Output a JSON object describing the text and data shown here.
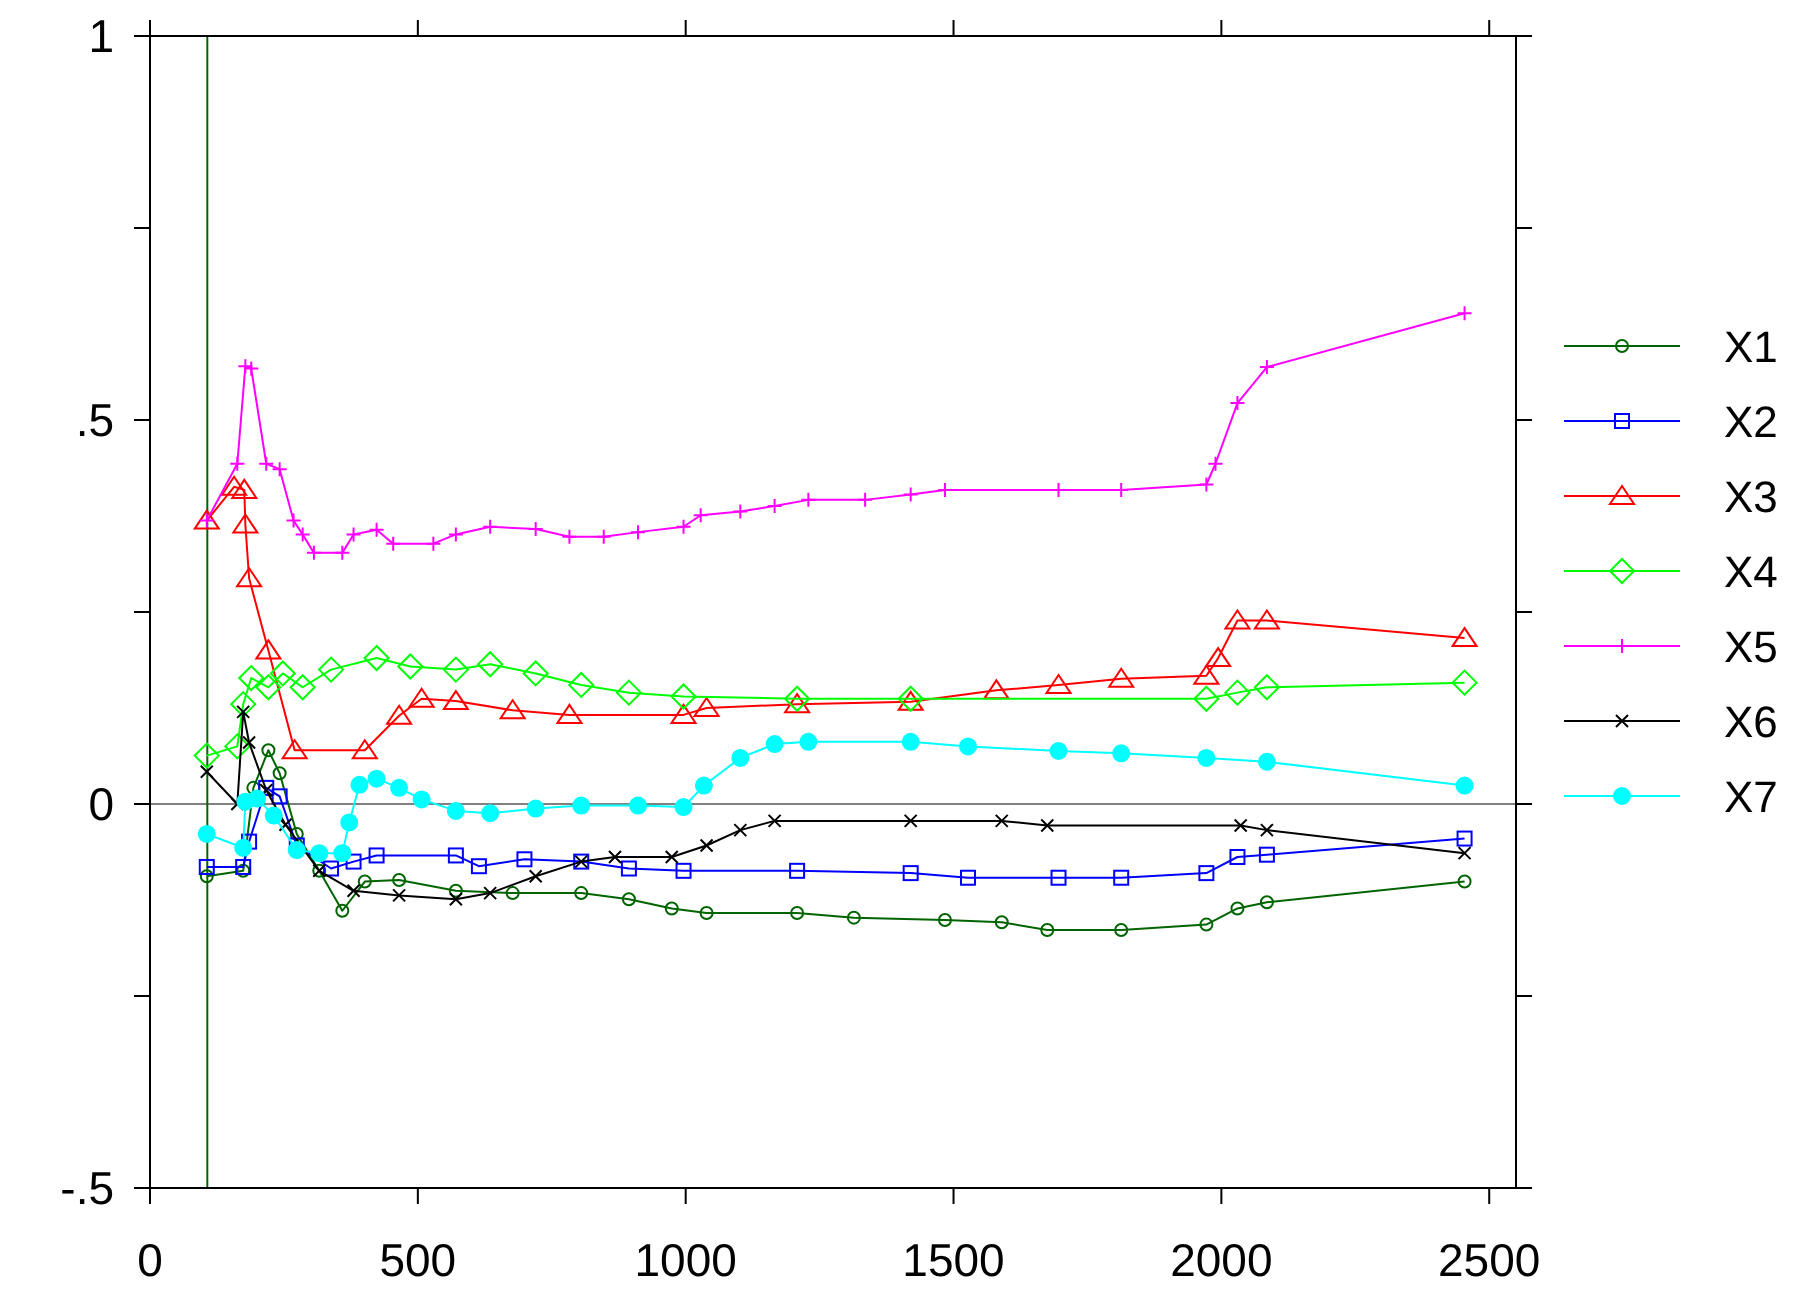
{
  "chart_data": {
    "type": "line",
    "xlim": [
      0,
      2550
    ],
    "ylim": [
      -0.5,
      1
    ],
    "xticks": [
      0,
      500,
      1000,
      1500,
      2000,
      2500
    ],
    "yticks": [
      {
        "value": -0.5,
        "label": "-.5"
      },
      {
        "value": -0.25,
        "label": null
      },
      0,
      {
        "value": 0.25,
        "label": null
      },
      {
        "value": 0.5,
        "label": ".5"
      },
      {
        "value": 0.75,
        "label": null
      },
      1
    ],
    "grid": false,
    "legend": "right",
    "line_style": "solid",
    "ref_lines": [
      {
        "axis": "y",
        "value": 0,
        "color": "#808080"
      },
      {
        "axis": "x",
        "value": 107,
        "color": "#006400"
      }
    ],
    "series": [
      {
        "name": "X1",
        "color": "#006400",
        "marker": "circle",
        "x": [
          106,
          174,
          193,
          221,
          242,
          274,
          316,
          359,
          401,
          465,
          571,
          677,
          805,
          894,
          974,
          1039,
          1208,
          1314,
          1484,
          1590,
          1675,
          1813,
          1972,
          2030,
          2085,
          2454
        ],
        "values": [
          -0.094,
          -0.087,
          0.021,
          0.07,
          0.04,
          -0.039,
          -0.087,
          -0.139,
          -0.101,
          -0.099,
          -0.113,
          -0.116,
          -0.116,
          -0.124,
          -0.136,
          -0.142,
          -0.142,
          -0.148,
          -0.151,
          -0.154,
          -0.164,
          -0.164,
          -0.157,
          -0.136,
          -0.128,
          -0.101
        ]
      },
      {
        "name": "X2",
        "color": "#0000ff",
        "marker": "square",
        "x": [
          106,
          174,
          185,
          217,
          242,
          274,
          338,
          380,
          423,
          571,
          614,
          699,
          805,
          894,
          996,
          1208,
          1420,
          1527,
          1696,
          1813,
          1972,
          2030,
          2085,
          2454
        ],
        "values": [
          -0.082,
          -0.082,
          -0.049,
          0.021,
          0.01,
          -0.054,
          -0.084,
          -0.075,
          -0.067,
          -0.067,
          -0.081,
          -0.072,
          -0.075,
          -0.084,
          -0.087,
          -0.087,
          -0.09,
          -0.096,
          -0.096,
          -0.096,
          -0.09,
          -0.069,
          -0.066,
          -0.045
        ]
      },
      {
        "name": "X3",
        "color": "#ff0000",
        "marker": "triangle",
        "x": [
          106,
          157,
          176,
          178,
          185,
          221,
          270,
          401,
          465,
          507,
          571,
          677,
          783,
          996,
          1039,
          1208,
          1420,
          1580,
          1696,
          1813,
          1972,
          1994,
          2030,
          2085,
          2454
        ],
        "values": [
          0.369,
          0.413,
          0.409,
          0.364,
          0.294,
          0.2,
          0.07,
          0.07,
          0.115,
          0.137,
          0.134,
          0.122,
          0.116,
          0.116,
          0.125,
          0.13,
          0.133,
          0.148,
          0.155,
          0.163,
          0.167,
          0.19,
          0.239,
          0.239,
          0.216
        ]
      },
      {
        "name": "X4",
        "color": "#00ff00",
        "marker": "diamond",
        "x": [
          106,
          163,
          174,
          189,
          221,
          248,
          285,
          338,
          423,
          486,
          571,
          635,
          720,
          805,
          894,
          996,
          1208,
          1420,
          1972,
          2030,
          2085,
          2454
        ],
        "values": [
          0.063,
          0.075,
          0.13,
          0.164,
          0.152,
          0.17,
          0.152,
          0.175,
          0.19,
          0.179,
          0.175,
          0.182,
          0.17,
          0.155,
          0.145,
          0.14,
          0.137,
          0.137,
          0.137,
          0.145,
          0.152,
          0.158
        ]
      },
      {
        "name": "X5",
        "color": "#ff00ff",
        "marker": "cross",
        "x": [
          106,
          163,
          178,
          189,
          217,
          242,
          268,
          285,
          306,
          359,
          380,
          423,
          454,
          529,
          571,
          635,
          720,
          783,
          847,
          911,
          996,
          1028,
          1102,
          1166,
          1229,
          1335,
          1420,
          1484,
          1696,
          1813,
          1972,
          1989,
          2030,
          2085,
          2454
        ],
        "values": [
          0.369,
          0.443,
          0.57,
          0.567,
          0.443,
          0.436,
          0.369,
          0.351,
          0.327,
          0.327,
          0.351,
          0.357,
          0.339,
          0.339,
          0.351,
          0.361,
          0.358,
          0.348,
          0.348,
          0.354,
          0.361,
          0.376,
          0.381,
          0.388,
          0.396,
          0.396,
          0.403,
          0.409,
          0.409,
          0.409,
          0.416,
          0.443,
          0.522,
          0.569,
          0.639
        ]
      },
      {
        "name": "X6",
        "color": "#000000",
        "marker": "x",
        "x": [
          106,
          163,
          174,
          185,
          217,
          253,
          316,
          380,
          465,
          571,
          635,
          720,
          805,
          868,
          974,
          1039,
          1102,
          1166,
          1420,
          1590,
          1675,
          2036,
          2085,
          2454
        ],
        "values": [
          0.042,
          0,
          0.12,
          0.08,
          0.018,
          -0.027,
          -0.087,
          -0.113,
          -0.119,
          -0.124,
          -0.116,
          -0.094,
          -0.075,
          -0.069,
          -0.069,
          -0.054,
          -0.034,
          -0.022,
          -0.022,
          -0.022,
          -0.028,
          -0.028,
          -0.034,
          -0.064
        ]
      },
      {
        "name": "X7",
        "color": "#00ffff",
        "marker": "filled-circle",
        "x": [
          106,
          174,
          178,
          200,
          231,
          274,
          316,
          359,
          372,
          391,
          423,
          465,
          507,
          571,
          635,
          720,
          805,
          911,
          996,
          1034,
          1102,
          1166,
          1229,
          1420,
          1527,
          1696,
          1813,
          1972,
          2085,
          2454
        ],
        "values": [
          -0.039,
          -0.057,
          0.003,
          0.007,
          -0.015,
          -0.06,
          -0.064,
          -0.064,
          -0.024,
          0.025,
          0.033,
          0.021,
          0.006,
          -0.009,
          -0.012,
          -0.006,
          -0.002,
          -0.002,
          -0.004,
          0.024,
          0.06,
          0.078,
          0.081,
          0.081,
          0.075,
          0.069,
          0.066,
          0.06,
          0.055,
          0.024
        ]
      }
    ]
  }
}
